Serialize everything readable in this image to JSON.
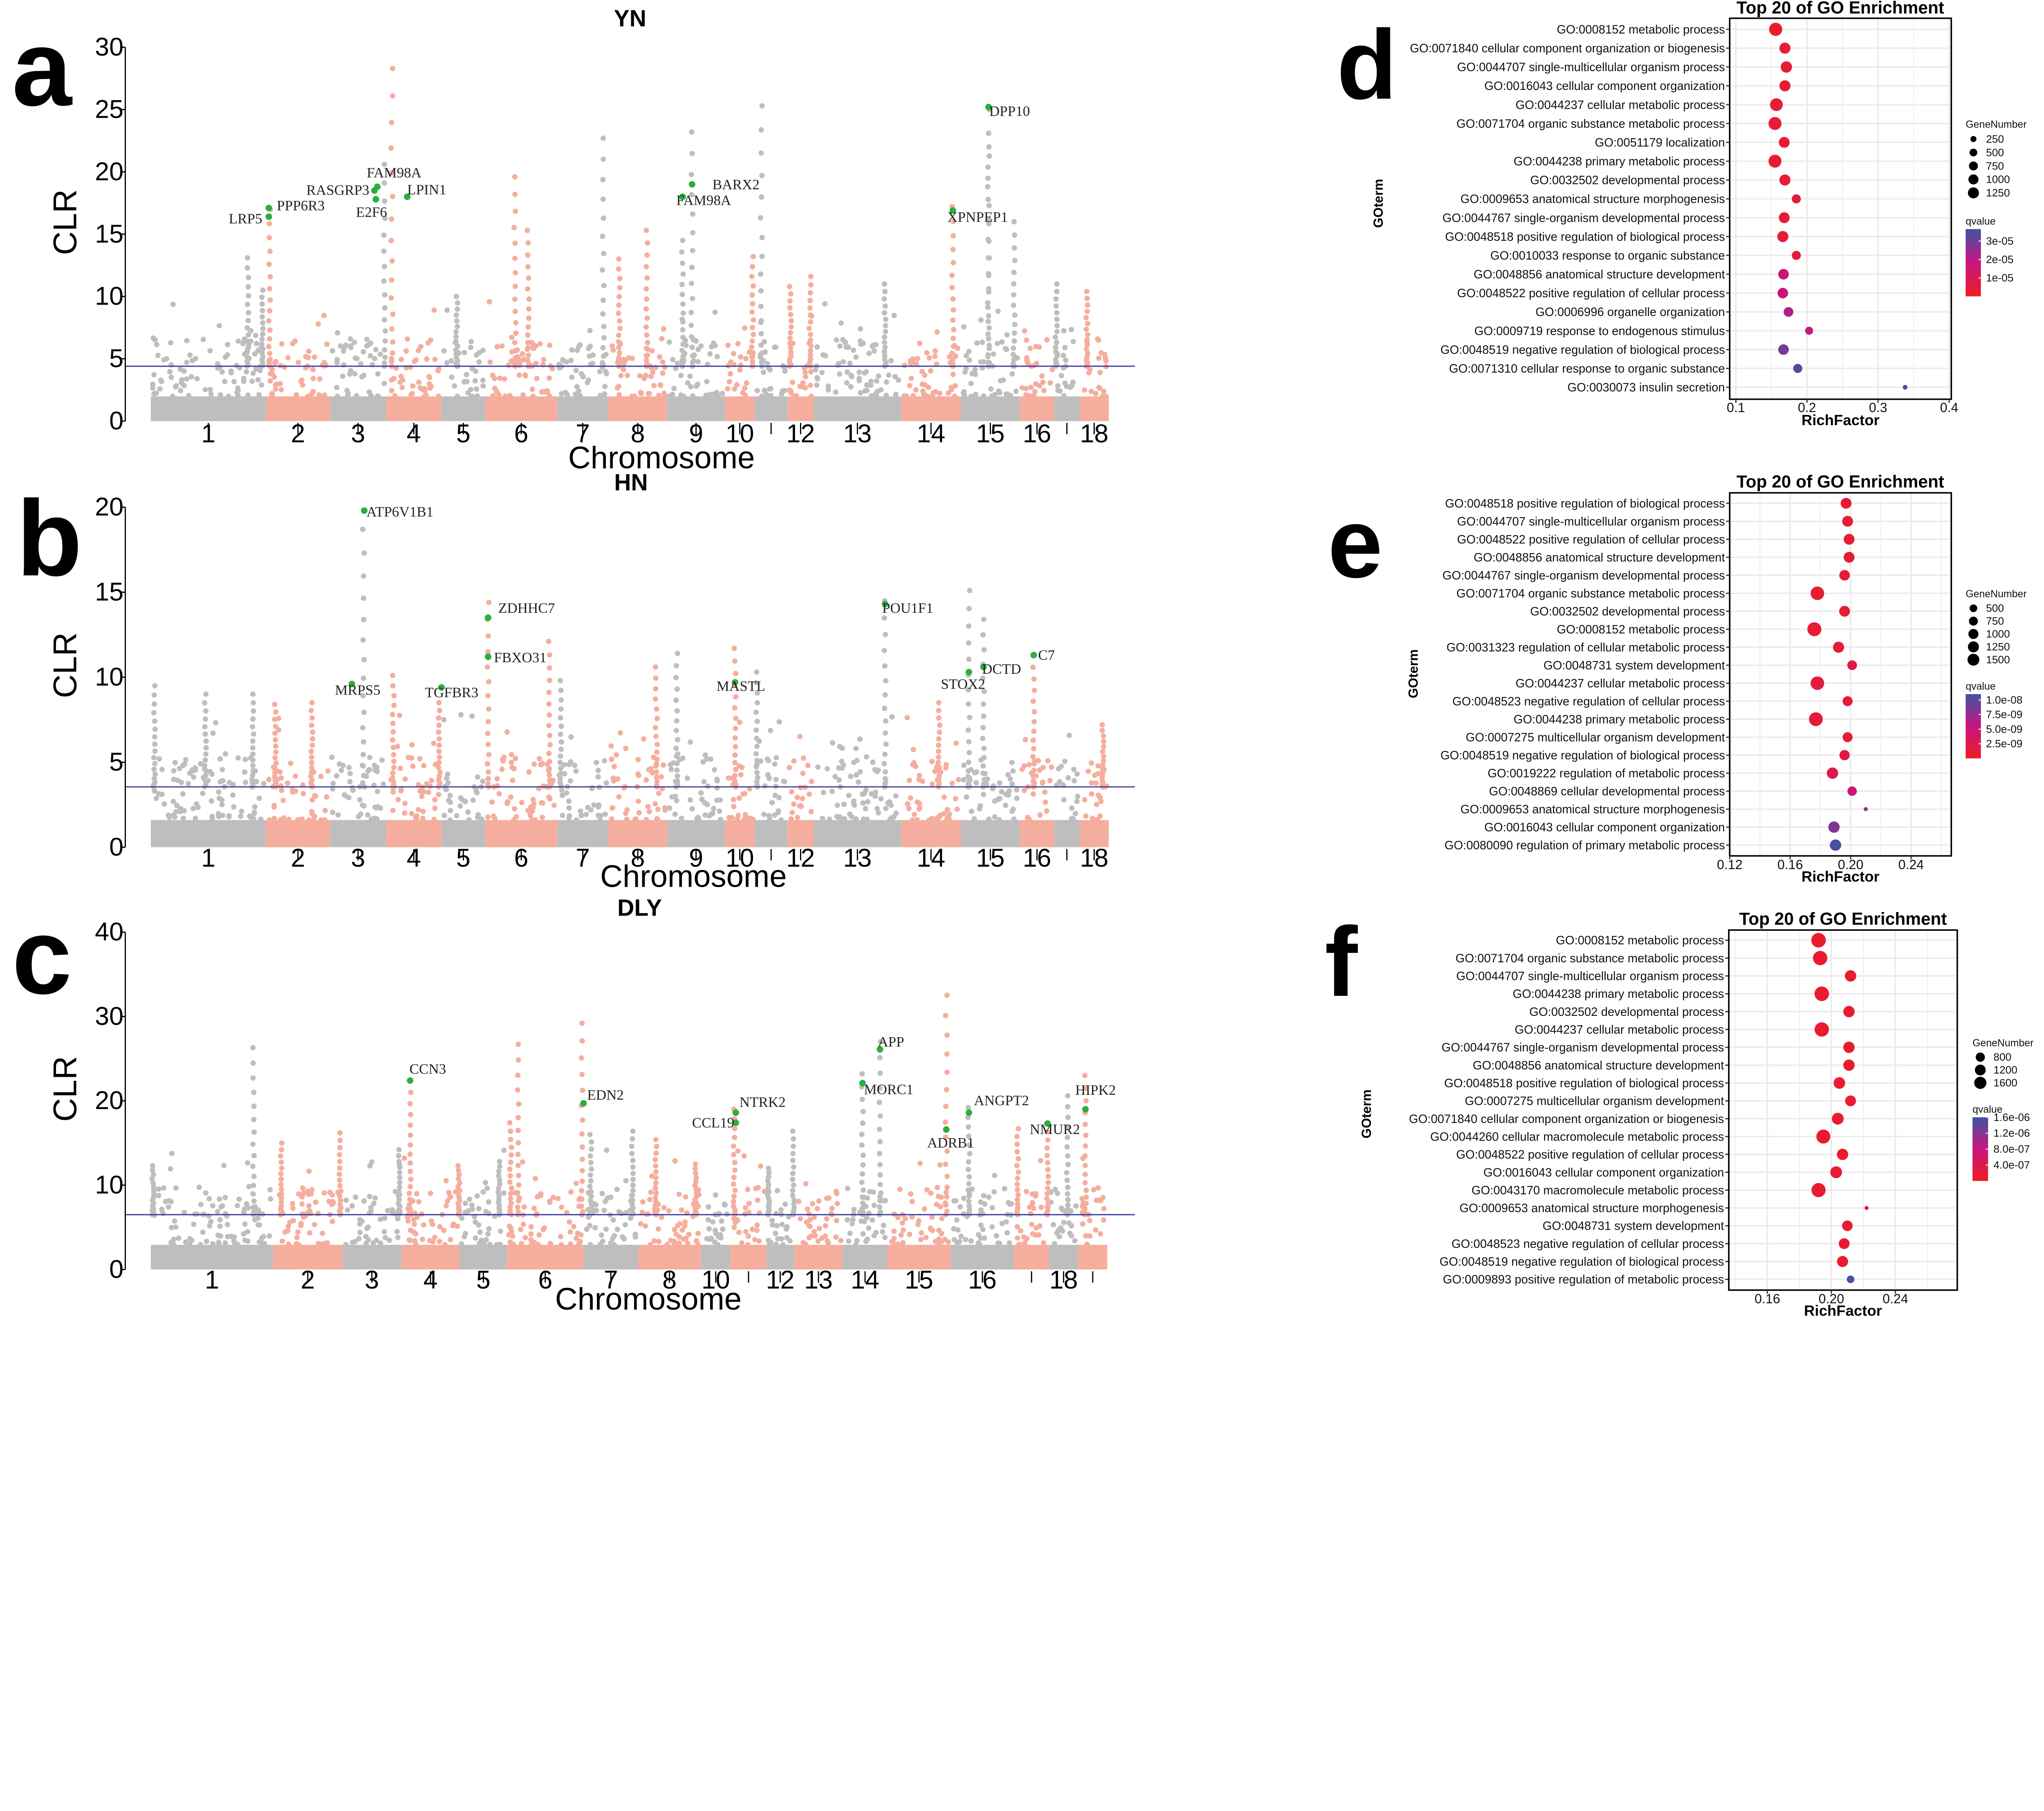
{
  "figure": {
    "panel_letters": [
      "a",
      "b",
      "c",
      "d",
      "e",
      "f"
    ]
  },
  "chart_data": [
    {
      "type": "scatter",
      "panel": "a",
      "title": "YN",
      "xlabel": "Chromosome",
      "ylabel": "CLR",
      "ylim": [
        0,
        30
      ],
      "yticks": [
        0,
        5,
        10,
        15,
        20,
        25,
        30
      ],
      "xtick_labels": [
        "1",
        "2",
        "3",
        "4",
        "5",
        "6",
        "7",
        "8",
        "9",
        "10",
        "",
        "12",
        "13",
        "14",
        "15",
        "16",
        "",
        "18"
      ],
      "threshold": 4.4,
      "colors": {
        "odd": "#BEBEBE",
        "even": "#F5AE9E",
        "highlight": "#2BB03B",
        "threshold": "#3A3E9C"
      },
      "highlighted_genes": [
        {
          "gene": "LRP5",
          "chr": 2,
          "clr": 16.4
        },
        {
          "gene": "PPP6R3",
          "chr": 2,
          "clr": 17.1
        },
        {
          "gene": "RASGRP3",
          "chr": 3,
          "clr": 18.5
        },
        {
          "gene": "FAM98A",
          "chr": 3,
          "clr": 18.8
        },
        {
          "gene": "E2F6",
          "chr": 3,
          "clr": 17.8
        },
        {
          "gene": "LPIN1",
          "chr": 4,
          "clr": 18.0
        },
        {
          "gene": "BARX2",
          "chr": 9,
          "clr": 19.0
        },
        {
          "gene": "FAM98A",
          "chr": 9,
          "clr": 18.0
        },
        {
          "gene": "XPNPEP1",
          "chr": 14,
          "clr": 16.9
        },
        {
          "gene": "DPP10",
          "chr": 15,
          "clr": 25.2
        }
      ]
    },
    {
      "type": "scatter",
      "panel": "b",
      "title": "HN",
      "xlabel": "Chromosome",
      "ylabel": "CLR",
      "ylim": [
        0,
        20
      ],
      "yticks": [
        0,
        5,
        10,
        15,
        20
      ],
      "xtick_labels": [
        "1",
        "2",
        "3",
        "4",
        "5",
        "6",
        "7",
        "8",
        "9",
        "10",
        "",
        "12",
        "13",
        "14",
        "15",
        "16",
        "",
        "18"
      ],
      "threshold": 3.55,
      "colors": {
        "odd": "#BEBEBE",
        "even": "#F5AE9E",
        "highlight": "#2BB03B",
        "threshold": "#3A3E9C"
      },
      "highlighted_genes": [
        {
          "gene": "ATP6V1B1",
          "chr": 3,
          "clr": 19.8
        },
        {
          "gene": "MRPS5",
          "chr": 3,
          "clr": 9.6
        },
        {
          "gene": "TGFBR3",
          "chr": 5,
          "clr": 9.4
        },
        {
          "gene": "ZDHHC7",
          "chr": 6,
          "clr": 13.5
        },
        {
          "gene": "FBXO31",
          "chr": 6,
          "clr": 11.2
        },
        {
          "gene": "MASTL",
          "chr": 10,
          "clr": 9.7
        },
        {
          "gene": "POU1F1",
          "chr": 13,
          "clr": 14.3
        },
        {
          "gene": "STOX2",
          "chr": 15,
          "clr": 10.3
        },
        {
          "gene": "DCTD",
          "chr": 15,
          "clr": 10.6
        },
        {
          "gene": "C7",
          "chr": 16,
          "clr": 11.3
        }
      ]
    },
    {
      "type": "scatter",
      "panel": "c",
      "title": "DLY",
      "xlabel": "Chromosome",
      "ylabel": "CLR",
      "ylim": [
        0,
        40
      ],
      "yticks": [
        0,
        10,
        20,
        30,
        40
      ],
      "xtick_labels": [
        "1",
        "2",
        "3",
        "4",
        "5",
        "6",
        "7",
        "8",
        "10",
        "",
        "12",
        "13",
        "14",
        "15",
        "16",
        "",
        "18"
      ],
      "threshold": 6.5,
      "colors": {
        "odd": "#BEBEBE",
        "even": "#F5AE9E",
        "highlight": "#2BB03B",
        "threshold": "#3A3E9C"
      },
      "highlighted_genes": [
        {
          "gene": "CCN3",
          "chr": 4,
          "clr": 22.4
        },
        {
          "gene": "EDN2",
          "chr": 7,
          "clr": 19.7
        },
        {
          "gene": "CCL19",
          "chr": 10,
          "clr": 17.4
        },
        {
          "gene": "NTRK2",
          "chr": 10,
          "clr": 18.6
        },
        {
          "gene": "MORC1",
          "chr": 13,
          "clr": 22.1
        },
        {
          "gene": "APP",
          "chr": 13,
          "clr": 26.1
        },
        {
          "gene": "ADRB1",
          "chr": 14,
          "clr": 16.6
        },
        {
          "gene": "ANGPT2",
          "chr": 15,
          "clr": 18.6
        },
        {
          "gene": "NMUR2",
          "chr": 16,
          "clr": 17.3
        },
        {
          "gene": "HIPK2",
          "chr": 18,
          "clr": 19.0
        }
      ]
    },
    {
      "type": "scatter",
      "panel": "d",
      "title": "Top 20 of GO Enrichment",
      "xlabel": "RichFactor",
      "ylabel": "GOterm",
      "xlim": [
        0.0913,
        0.403
      ],
      "xticks": [
        0.1,
        0.2,
        0.3,
        0.4
      ],
      "xtick_labels": [
        "0.1",
        "0.2",
        "0.3",
        "0.4"
      ],
      "terms": [
        {
          "term": "GO:0008152 metabolic process",
          "rich_factor": 0.156,
          "gene_number": 1300,
          "qvalue": 2e-06
        },
        {
          "term": "GO:0071840 cellular component organization or biogenesis",
          "rich_factor": 0.169,
          "gene_number": 850,
          "qvalue": 3e-06
        },
        {
          "term": "GO:0044707 single-multicellular organism process",
          "rich_factor": 0.171,
          "gene_number": 900,
          "qvalue": 3e-06
        },
        {
          "term": "GO:0016043 cellular component organization",
          "rich_factor": 0.169,
          "gene_number": 850,
          "qvalue": 3e-06
        },
        {
          "term": "GO:0044237 cellular metabolic process",
          "rich_factor": 0.157,
          "gene_number": 1200,
          "qvalue": 3e-06
        },
        {
          "term": "GO:0071704 organic substance metabolic process",
          "rich_factor": 0.155,
          "gene_number": 1250,
          "qvalue": 3e-06
        },
        {
          "term": "GO:0051179 localization",
          "rich_factor": 0.168,
          "gene_number": 800,
          "qvalue": 3e-06
        },
        {
          "term": "GO:0044238 primary metabolic process",
          "rich_factor": 0.155,
          "gene_number": 1250,
          "qvalue": 3e-06
        },
        {
          "term": "GO:0032502 developmental process",
          "rich_factor": 0.169,
          "gene_number": 850,
          "qvalue": 3e-06
        },
        {
          "term": "GO:0009653 anatomical structure morphogenesis",
          "rich_factor": 0.185,
          "gene_number": 500,
          "qvalue": 5e-06
        },
        {
          "term": "GO:0044767 single-organism developmental process",
          "rich_factor": 0.168,
          "gene_number": 800,
          "qvalue": 4e-06
        },
        {
          "term": "GO:0048518 positive regulation of biological process",
          "rich_factor": 0.166,
          "gene_number": 850,
          "qvalue": 4e-06
        },
        {
          "term": "GO:0010033 response to organic substance",
          "rich_factor": 0.185,
          "gene_number": 500,
          "qvalue": 6e-06
        },
        {
          "term": "GO:0048856 anatomical structure development",
          "rich_factor": 0.167,
          "gene_number": 750,
          "qvalue": 1.6e-05
        },
        {
          "term": "GO:0048522 positive regulation of cellular process",
          "rich_factor": 0.166,
          "gene_number": 750,
          "qvalue": 1.7e-05
        },
        {
          "term": "GO:0006996 organelle organization",
          "rich_factor": 0.174,
          "gene_number": 600,
          "qvalue": 2.2e-05
        },
        {
          "term": "GO:0009719 response to endogenous stimulus",
          "rich_factor": 0.203,
          "gene_number": 350,
          "qvalue": 1.9e-05
        },
        {
          "term": "GO:0048519 negative regulation of biological process",
          "rich_factor": 0.167,
          "gene_number": 750,
          "qvalue": 2.9e-05
        },
        {
          "term": "GO:0071310 cellular response to organic substance",
          "rich_factor": 0.187,
          "gene_number": 500,
          "qvalue": 3.2e-05
        },
        {
          "term": "GO:0030073 insulin secretion",
          "rich_factor": 0.338,
          "gene_number": 60,
          "qvalue": 3.5e-05
        }
      ],
      "legend_size": {
        "title": "GeneNumber",
        "values": [
          250,
          500,
          750,
          1000,
          1250
        ],
        "labels": [
          "250",
          "500",
          "750",
          "1000",
          "1250"
        ]
      },
      "legend_color": {
        "title": "qvalue",
        "values": [
          3e-05,
          2e-05,
          1e-05
        ],
        "labels": [
          "3e-05",
          "2e-05",
          "1e-05"
        ],
        "scale_range": [
          0,
          3.65e-05
        ],
        "low": "#EE1D23",
        "mid": "#C8157F",
        "high": "#3E54A4"
      }
    },
    {
      "type": "scatter",
      "panel": "e",
      "title": "Top 20 of GO Enrichment",
      "xlabel": "RichFactor",
      "ylabel": "GOterm",
      "xlim": [
        0.12,
        0.2666
      ],
      "xticks": [
        0.12,
        0.16,
        0.2,
        0.24
      ],
      "xtick_labels": [
        "0.12",
        "0.16",
        "0.20",
        "0.24"
      ],
      "terms": [
        {
          "term": "GO:0048518 positive regulation of biological process",
          "rich_factor": 0.197,
          "gene_number": 800,
          "qvalue": 1e-09
        },
        {
          "term": "GO:0044707 single-multicellular organism process",
          "rich_factor": 0.198,
          "gene_number": 800,
          "qvalue": 1e-09
        },
        {
          "term": "GO:0048522 positive regulation of cellular process",
          "rich_factor": 0.199,
          "gene_number": 800,
          "qvalue": 1e-09
        },
        {
          "term": "GO:0048856 anatomical structure development",
          "rich_factor": 0.199,
          "gene_number": 800,
          "qvalue": 1e-09
        },
        {
          "term": "GO:0044767 single-organism developmental process",
          "rich_factor": 0.196,
          "gene_number": 750,
          "qvalue": 1e-09
        },
        {
          "term": "GO:0071704 organic substance metabolic process",
          "rich_factor": 0.178,
          "gene_number": 1400,
          "qvalue": 1e-09
        },
        {
          "term": "GO:0032502 developmental process",
          "rich_factor": 0.196,
          "gene_number": 800,
          "qvalue": 1e-09
        },
        {
          "term": "GO:0008152 metabolic process",
          "rich_factor": 0.176,
          "gene_number": 1500,
          "qvalue": 1e-09
        },
        {
          "term": "GO:0031323 regulation of cellular metabolic process",
          "rich_factor": 0.192,
          "gene_number": 850,
          "qvalue": 1.5e-09
        },
        {
          "term": "GO:0048731 system development",
          "rich_factor": 0.201,
          "gene_number": 600,
          "qvalue": 2e-09
        },
        {
          "term": "GO:0044237 cellular metabolic process",
          "rich_factor": 0.178,
          "gene_number": 1400,
          "qvalue": 1.5e-09
        },
        {
          "term": "GO:0048523 negative regulation of cellular process",
          "rich_factor": 0.198,
          "gene_number": 650,
          "qvalue": 1.5e-09
        },
        {
          "term": "GO:0044238 primary metabolic process",
          "rich_factor": 0.177,
          "gene_number": 1450,
          "qvalue": 1.5e-09
        },
        {
          "term": "GO:0007275 multicellular organism development",
          "rich_factor": 0.198,
          "gene_number": 650,
          "qvalue": 1.5e-09
        },
        {
          "term": "GO:0048519 negative regulation of biological process",
          "rich_factor": 0.196,
          "gene_number": 700,
          "qvalue": 2e-09
        },
        {
          "term": "GO:0019222 regulation of metabolic process",
          "rich_factor": 0.188,
          "gene_number": 900,
          "qvalue": 2.5e-09
        },
        {
          "term": "GO:0048869 cellular developmental process",
          "rich_factor": 0.201,
          "gene_number": 550,
          "qvalue": 5e-09
        },
        {
          "term": "GO:0009653 anatomical structure morphogenesis",
          "rich_factor": 0.21,
          "gene_number": 30,
          "qvalue": 8e-09
        },
        {
          "term": "GO:0016043 cellular component organization",
          "rich_factor": 0.189,
          "gene_number": 900,
          "qvalue": 8.5e-09
        },
        {
          "term": "GO:0080090 regulation of primary metabolic process",
          "rich_factor": 0.19,
          "gene_number": 900,
          "qvalue": 1.05e-08
        }
      ],
      "legend_size": {
        "title": "GeneNumber",
        "values": [
          500,
          750,
          1000,
          1250,
          1500
        ],
        "labels": [
          "500",
          "750",
          "1000",
          "1250",
          "1500"
        ]
      },
      "legend_color": {
        "title": "qvalue",
        "values": [
          1e-08,
          7.5e-09,
          5e-09,
          2.5e-09
        ],
        "labels": [
          "1.0e-08",
          "7.5e-09",
          "5.0e-09",
          "2.5e-09"
        ],
        "scale_range": [
          0,
          1.1e-08
        ],
        "low": "#EE1D23",
        "mid": "#C8157F",
        "high": "#3E54A4"
      }
    },
    {
      "type": "scatter",
      "panel": "f",
      "title": "Top 20 of GO Enrichment",
      "xlabel": "RichFactor",
      "ylabel": "GOterm",
      "xlim": [
        0.1359,
        0.2787
      ],
      "xticks": [
        0.16,
        0.2,
        0.24
      ],
      "xtick_labels": [
        "0.16",
        "0.20",
        "0.24"
      ],
      "terms": [
        {
          "term": "GO:0008152 metabolic process",
          "rich_factor": 0.192,
          "gene_number": 1650,
          "qvalue": 1e-07
        },
        {
          "term": "GO:0071704 organic substance metabolic process",
          "rich_factor": 0.193,
          "gene_number": 1600,
          "qvalue": 1e-07
        },
        {
          "term": "GO:0044707 single-multicellular organism process",
          "rich_factor": 0.212,
          "gene_number": 900,
          "qvalue": 1e-07
        },
        {
          "term": "GO:0044238 primary metabolic process",
          "rich_factor": 0.194,
          "gene_number": 1650,
          "qvalue": 1e-07
        },
        {
          "term": "GO:0032502 developmental process",
          "rich_factor": 0.211,
          "gene_number": 900,
          "qvalue": 1e-07
        },
        {
          "term": "GO:0044237 cellular metabolic process",
          "rich_factor": 0.194,
          "gene_number": 1600,
          "qvalue": 1e-07
        },
        {
          "term": "GO:0044767 single-organism developmental process",
          "rich_factor": 0.211,
          "gene_number": 900,
          "qvalue": 1e-07
        },
        {
          "term": "GO:0048856 anatomical structure development",
          "rich_factor": 0.211,
          "gene_number": 900,
          "qvalue": 1e-07
        },
        {
          "term": "GO:0048518 positive regulation of biological process",
          "rich_factor": 0.205,
          "gene_number": 950,
          "qvalue": 1e-07
        },
        {
          "term": "GO:0007275 multicellular organism development",
          "rich_factor": 0.212,
          "gene_number": 800,
          "qvalue": 1e-07
        },
        {
          "term": "GO:0071840 cellular component organization or biogenesis",
          "rich_factor": 0.204,
          "gene_number": 1000,
          "qvalue": 1e-07
        },
        {
          "term": "GO:0044260 cellular macromolecule metabolic process",
          "rich_factor": 0.195,
          "gene_number": 1500,
          "qvalue": 1e-07
        },
        {
          "term": "GO:0048522 positive regulation of cellular process",
          "rich_factor": 0.207,
          "gene_number": 900,
          "qvalue": 1e-07
        },
        {
          "term": "GO:0016043 cellular component organization",
          "rich_factor": 0.203,
          "gene_number": 1000,
          "qvalue": 1e-07
        },
        {
          "term": "GO:0043170 macromolecule metabolic process",
          "rich_factor": 0.192,
          "gene_number": 1550,
          "qvalue": 1e-07
        },
        {
          "term": "GO:0009653 anatomical structure morphogenesis",
          "rich_factor": 0.222,
          "gene_number": 30,
          "qvalue": 1.5e-07
        },
        {
          "term": "GO:0048731 system development",
          "rich_factor": 0.21,
          "gene_number": 750,
          "qvalue": 1e-07
        },
        {
          "term": "GO:0048523 negative regulation of cellular process",
          "rich_factor": 0.208,
          "gene_number": 800,
          "qvalue": 1e-07
        },
        {
          "term": "GO:0048519 negative regulation of biological process",
          "rich_factor": 0.207,
          "gene_number": 850,
          "qvalue": 1e-07
        },
        {
          "term": "GO:0009893 positive regulation of metabolic process",
          "rich_factor": 0.212,
          "gene_number": 300,
          "qvalue": 1.55e-06
        }
      ],
      "legend_size": {
        "title": "GeneNumber",
        "values": [
          800,
          1200,
          1600
        ],
        "labels": [
          "800",
          "1200",
          "1600"
        ]
      },
      "legend_color": {
        "title": "qvalue",
        "values": [
          1.6e-06,
          1.2e-06,
          8e-07,
          4e-07
        ],
        "labels": [
          "1.6e-06",
          "1.2e-06",
          "8.0e-07",
          "4.0e-07"
        ],
        "scale_range": [
          0,
          1.6e-06
        ],
        "low": "#EE1D23",
        "mid": "#C8157F",
        "high": "#3E54A4"
      }
    }
  ]
}
